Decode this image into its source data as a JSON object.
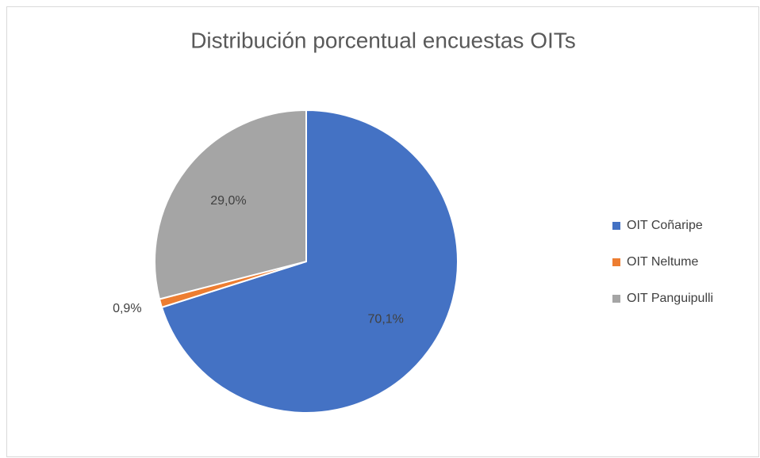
{
  "chart_data": {
    "type": "pie",
    "title": "Distribución porcentual encuestas OITs",
    "categories": [
      "OIT Coñaripe",
      "OIT Neltume",
      "OIT Panguipulli"
    ],
    "values": [
      70.1,
      0.9,
      29.0
    ],
    "value_labels": [
      "70,1%",
      "0,9%",
      "29,0%"
    ],
    "colors": [
      "#4472c4",
      "#ed7d31",
      "#a5a5a5"
    ],
    "legend": "right"
  }
}
